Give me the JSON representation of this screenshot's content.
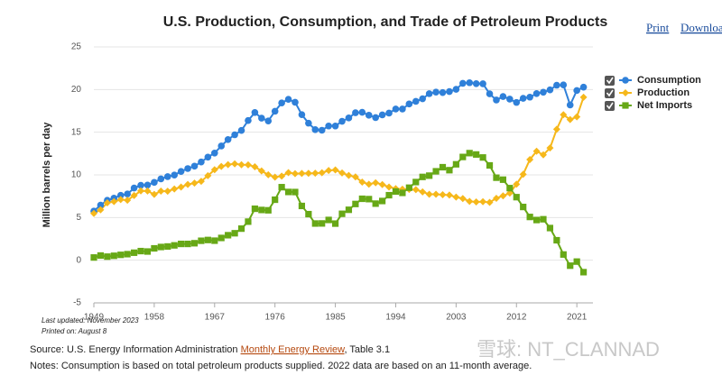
{
  "chart_data": {
    "type": "line",
    "title": "U.S. Production, Consumption, and Trade of Petroleum Products",
    "y_label": "Million barrels per day",
    "x": [
      1949,
      1950,
      1951,
      1952,
      1953,
      1954,
      1955,
      1956,
      1957,
      1958,
      1959,
      1960,
      1961,
      1962,
      1963,
      1964,
      1965,
      1966,
      1967,
      1968,
      1969,
      1970,
      1971,
      1972,
      1973,
      1974,
      1975,
      1976,
      1977,
      1978,
      1979,
      1980,
      1981,
      1982,
      1983,
      1984,
      1985,
      1986,
      1987,
      1988,
      1989,
      1990,
      1991,
      1992,
      1993,
      1994,
      1995,
      1996,
      1997,
      1998,
      1999,
      2000,
      2001,
      2002,
      2003,
      2004,
      2005,
      2006,
      2007,
      2008,
      2009,
      2010,
      2011,
      2012,
      2013,
      2014,
      2015,
      2016,
      2017,
      2018,
      2019,
      2020,
      2021,
      2022
    ],
    "xlim": [
      1949,
      2023.4
    ],
    "xticks": [
      1949,
      1958,
      1967,
      1976,
      1985,
      1994,
      2003,
      2012,
      2021
    ],
    "ylim": [
      -5,
      25
    ],
    "yticks": [
      -5,
      0,
      5,
      10,
      15,
      20,
      25
    ],
    "grid": true,
    "legend": "right",
    "series": [
      {
        "name": "Consumption",
        "color": "#2f80d9",
        "marker": "circle",
        "values": [
          5.76,
          6.46,
          7.02,
          7.27,
          7.6,
          7.76,
          8.46,
          8.78,
          8.81,
          9.12,
          9.53,
          9.8,
          9.98,
          10.4,
          10.74,
          11.02,
          11.51,
          12.08,
          12.56,
          13.39,
          14.14,
          14.7,
          15.21,
          16.37,
          17.31,
          16.65,
          16.32,
          17.46,
          18.43,
          18.85,
          18.51,
          17.06,
          16.06,
          15.3,
          15.23,
          15.73,
          15.73,
          16.28,
          16.67,
          17.28,
          17.33,
          16.99,
          16.71,
          17.03,
          17.24,
          17.72,
          17.72,
          18.31,
          18.62,
          18.92,
          19.52,
          19.7,
          19.65,
          19.76,
          20.03,
          20.73,
          20.8,
          20.69,
          20.68,
          19.5,
          18.77,
          19.18,
          18.88,
          18.49,
          18.97,
          19.11,
          19.53,
          19.69,
          19.96,
          20.51,
          20.54,
          18.19,
          19.89,
          20.28
        ]
      },
      {
        "name": "Production",
        "color": "#f6b81b",
        "marker": "diamond",
        "values": [
          5.48,
          5.91,
          6.72,
          6.87,
          7.11,
          7.03,
          7.58,
          8.12,
          8.11,
          7.72,
          8.1,
          8.09,
          8.35,
          8.57,
          8.88,
          9.04,
          9.25,
          9.91,
          10.61,
          10.99,
          11.2,
          11.3,
          11.19,
          11.18,
          10.95,
          10.46,
          10.01,
          9.74,
          9.86,
          10.27,
          10.14,
          10.17,
          10.18,
          10.2,
          10.25,
          10.51,
          10.58,
          10.23,
          9.94,
          9.76,
          9.16,
          8.91,
          9.08,
          8.87,
          8.58,
          8.39,
          8.32,
          8.3,
          8.27,
          8.01,
          7.73,
          7.73,
          7.67,
          7.63,
          7.4,
          7.23,
          6.9,
          6.83,
          6.86,
          6.78,
          7.26,
          7.55,
          7.86,
          8.91,
          10.07,
          11.8,
          12.77,
          12.35,
          13.15,
          15.35,
          17.05,
          16.48,
          16.8,
          19.1
        ]
      },
      {
        "name": "Net Imports",
        "color": "#67a816",
        "marker": "square",
        "values": [
          0.32,
          0.55,
          0.42,
          0.52,
          0.63,
          0.71,
          0.88,
          1.07,
          1.02,
          1.39,
          1.55,
          1.61,
          1.74,
          1.91,
          1.91,
          1.99,
          2.28,
          2.37,
          2.29,
          2.61,
          2.93,
          3.16,
          3.7,
          4.52,
          6.03,
          5.89,
          5.85,
          7.09,
          8.56,
          8,
          7.99,
          6.36,
          5.4,
          4.3,
          4.31,
          4.72,
          4.29,
          5.44,
          5.91,
          6.59,
          7.2,
          7.16,
          6.63,
          6.94,
          7.62,
          8.05,
          7.89,
          8.5,
          9.16,
          9.76,
          9.91,
          10.42,
          10.9,
          10.55,
          11.24,
          12.1,
          12.55,
          12.39,
          12.04,
          11.11,
          9.67,
          9.44,
          8.45,
          7.39,
          6.24,
          5.07,
          4.71,
          4.8,
          3.77,
          2.34,
          0.67,
          -0.64,
          -0.16,
          -1.4
        ]
      }
    ]
  },
  "toolbar": {
    "print": "Print",
    "download": "Downloa"
  },
  "footer": {
    "last_updated": "Last updated: November 2023",
    "printed_on": "Printed on: August 8",
    "source_prefix": "Source: U.S. Energy Information Administration ",
    "source_link": "Monthly Energy Review",
    "source_suffix": ", Table 3.1",
    "notes": "Notes: Consumption is based on total petroleum products supplied. 2022 data are based on an 11-month average.",
    "watermark": "雪球: NT_CLANNAD"
  }
}
